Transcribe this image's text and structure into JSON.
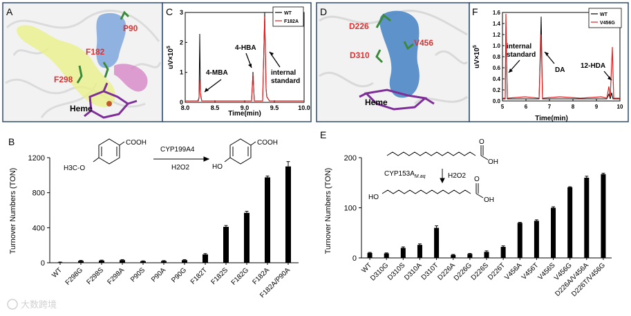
{
  "panels": {
    "A": {
      "letter": "A",
      "labels": {
        "p90": "P90",
        "f182": "F182",
        "f298": "F298",
        "heme": "Heme"
      }
    },
    "C": {
      "letter": "C",
      "legend": [
        "WT",
        "F182A"
      ],
      "ylabel": "uV×10",
      "ylabel_exp": "5",
      "xlabel": "Time(min)",
      "xticks": [
        "8.0",
        "8.5",
        "9.0",
        "9.5",
        "10.0"
      ],
      "yticks": [
        "0",
        "1",
        "2",
        "3"
      ],
      "annotations": {
        "mba": "4-MBA",
        "hba": "4-HBA",
        "std1": "internal",
        "std2": "standard"
      }
    },
    "D": {
      "letter": "D",
      "labels": {
        "d226": "D226",
        "v456": "V456",
        "d310": "D310",
        "heme": "Heme"
      }
    },
    "F": {
      "letter": "F",
      "legend": [
        "WT",
        "V456G"
      ],
      "ylabel": "uV×10",
      "ylabel_exp": "5",
      "xlabel": "Time(min)",
      "xticks": [
        "5",
        "6",
        "7",
        "8",
        "9",
        "10"
      ],
      "yticks": [
        "0.0",
        "0.2",
        "0.4",
        "0.6",
        "0.8",
        "1.0",
        "1.2",
        "1.4",
        "1.6"
      ],
      "annotations": {
        "std1": "internal",
        "std2": "standard",
        "da": "DA",
        "hda": "12-HDA"
      }
    },
    "B": {
      "letter": "B",
      "ylabel": "Turnover Numbers (TON)",
      "yticks": [
        "0",
        "400",
        "800",
        "1200"
      ],
      "scheme": {
        "reagent": "COOH",
        "sub": "H3C-O",
        "enzyme": "CYP199A4",
        "oxidant": "H2O2",
        "product_oh": "HO",
        "product_acid": "COOH"
      }
    },
    "E": {
      "letter": "E",
      "ylabel": "Turnover Numbers (TON)",
      "yticks": [
        "0",
        "100",
        "200"
      ],
      "scheme": {
        "oh": "OH",
        "o": "O",
        "enzyme": "CYP153A",
        "enzyme_sub": "M.aq",
        "oxidant": "H2O2",
        "ho": "HO"
      }
    }
  },
  "chart_data": [
    {
      "type": "bar",
      "categories": [
        "WT",
        "F298G",
        "F298S",
        "F298A",
        "P90S",
        "P90A",
        "P90G",
        "F182T",
        "F182S",
        "F182G",
        "F182A",
        "F182A/P90A"
      ],
      "values": [
        5,
        22,
        25,
        30,
        18,
        20,
        30,
        95,
        410,
        570,
        975,
        1100
      ],
      "errors": [
        3,
        5,
        5,
        6,
        4,
        5,
        6,
        10,
        15,
        18,
        15,
        55
      ],
      "ylabel": "Turnover Numbers (TON)",
      "ylim": [
        0,
        1200
      ]
    },
    {
      "type": "bar",
      "categories": [
        "WT",
        "D310G",
        "D310S",
        "D310A",
        "D310T",
        "D226A",
        "D226G",
        "D226S",
        "D226T",
        "V456A",
        "V456T",
        "V456S",
        "V456G",
        "D226A/V456A",
        "D226T/V456G"
      ],
      "values": [
        10,
        9,
        20,
        26,
        60,
        6,
        8,
        12,
        22,
        70,
        74,
        100,
        141,
        160,
        167
      ],
      "errors": [
        1,
        1,
        2,
        2,
        4,
        1,
        1,
        2,
        2,
        1,
        2,
        2,
        1,
        3,
        2
      ],
      "ylabel": "Turnover Numbers (TON)",
      "ylim": [
        0,
        200
      ]
    }
  ],
  "watermark": "大数跨境"
}
